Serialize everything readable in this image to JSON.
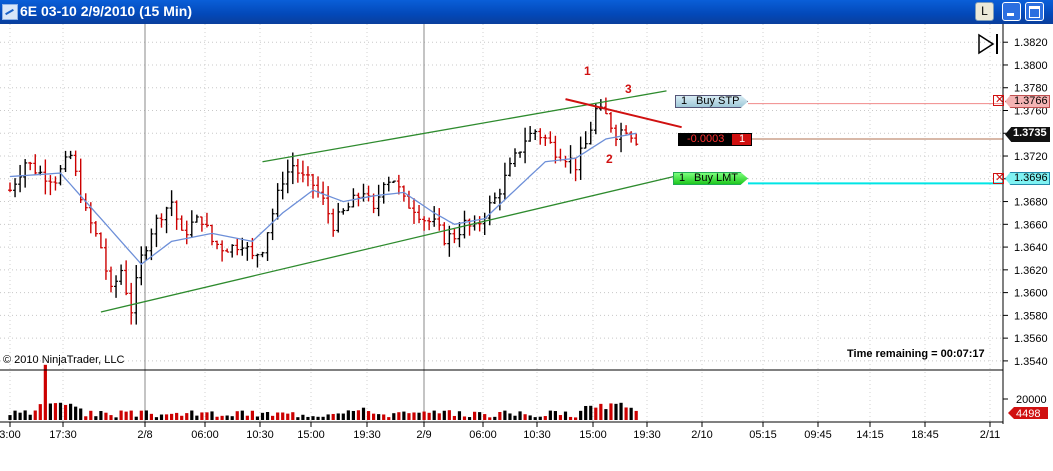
{
  "window": {
    "title": "6E 03-10  2/9/2010 (15 Min)",
    "button_l": "L"
  },
  "copyright": "© 2010 NinjaTrader, LLC",
  "time_remaining": "Time remaining = 00:07:17",
  "annotations": {
    "label1": "1",
    "label2": "2",
    "label3": "3"
  },
  "orders": {
    "buy_stop": {
      "qty": "1",
      "label": "Buy STP",
      "price": "1.3766"
    },
    "position": {
      "pnl": "-0.0003",
      "qty": "1",
      "price": "1.3735"
    },
    "buy_limit": {
      "qty": "1",
      "label": "Buy LMT",
      "price": "1.3696"
    }
  },
  "volume_axis": {
    "label": "20000",
    "last": "4498"
  },
  "colors": {
    "channel": "#2e8b2e",
    "ema": "#6d8fd8",
    "up_bar": "#000000",
    "down_bar": "#cc0000",
    "buy_stop": "#f08a8a",
    "buy_limit": "#00e5e5",
    "accent_title": "#0a5fd8"
  },
  "chart_data": {
    "type": "ohlc",
    "symbol": "6E 03-10",
    "interval": "15 Min",
    "price_axis": {
      "ticks": [
        "1.3820",
        "1.3800",
        "1.3780",
        "1.3760",
        "1.3740",
        "1.3720",
        "1.3700",
        "1.3680",
        "1.3660",
        "1.3640",
        "1.3620",
        "1.3600",
        "1.3580",
        "1.3560",
        "1.3540"
      ],
      "range": [
        1.3532,
        1.3836
      ]
    },
    "time_axis": {
      "labels": [
        "3:00",
        "17:30",
        "2/8",
        "06:00",
        "10:30",
        "15:00",
        "19:30",
        "2/9",
        "06:00",
        "10:30",
        "15:00",
        "19:30",
        "2/10",
        "05:15",
        "09:45",
        "14:15",
        "18:45",
        "2/11"
      ]
    },
    "close_path": [
      [
        0,
        1.369
      ],
      [
        3,
        1.3715
      ],
      [
        6,
        1.3705
      ],
      [
        9,
        1.37
      ],
      [
        12,
        1.372
      ],
      [
        15,
        1.367
      ],
      [
        18,
        1.364
      ],
      [
        20,
        1.36
      ],
      [
        22,
        1.362
      ],
      [
        24,
        1.3585
      ],
      [
        26,
        1.363
      ],
      [
        28,
        1.3655
      ],
      [
        30,
        1.367
      ],
      [
        32,
        1.368
      ],
      [
        34,
        1.365
      ],
      [
        36,
        1.366
      ],
      [
        38,
        1.3665
      ],
      [
        40,
        1.3645
      ],
      [
        42,
        1.364
      ],
      [
        44,
        1.364
      ],
      [
        46,
        1.3645
      ],
      [
        48,
        1.363
      ],
      [
        50,
        1.364
      ],
      [
        52,
        1.367
      ],
      [
        54,
        1.37
      ],
      [
        56,
        1.3712
      ],
      [
        58,
        1.37
      ],
      [
        60,
        1.3695
      ],
      [
        62,
        1.368
      ],
      [
        64,
        1.366
      ],
      [
        66,
        1.367
      ],
      [
        68,
        1.368
      ],
      [
        70,
        1.369
      ],
      [
        72,
        1.367
      ],
      [
        74,
        1.37
      ],
      [
        76,
        1.37
      ],
      [
        78,
        1.368
      ],
      [
        80,
        1.3675
      ],
      [
        82,
        1.3665
      ],
      [
        84,
        1.366
      ],
      [
        86,
        1.3648
      ],
      [
        88,
        1.365
      ],
      [
        90,
        1.366
      ],
      [
        92,
        1.3655
      ],
      [
        94,
        1.367
      ],
      [
        96,
        1.3682
      ],
      [
        98,
        1.37
      ],
      [
        100,
        1.3718
      ],
      [
        102,
        1.3735
      ],
      [
        104,
        1.3742
      ],
      [
        106,
        1.3735
      ],
      [
        108,
        1.3725
      ],
      [
        110,
        1.372
      ],
      [
        112,
        1.3712
      ],
      [
        114,
        1.373
      ],
      [
        116,
        1.376
      ],
      [
        118,
        1.3755
      ],
      [
        120,
        1.374
      ],
      [
        122,
        1.3745
      ],
      [
        124,
        1.3735
      ]
    ],
    "ema_path": [
      [
        0,
        1.3702
      ],
      [
        10,
        1.3705
      ],
      [
        20,
        1.3655
      ],
      [
        26,
        1.3625
      ],
      [
        32,
        1.3645
      ],
      [
        40,
        1.3652
      ],
      [
        48,
        1.3645
      ],
      [
        54,
        1.367
      ],
      [
        60,
        1.369
      ],
      [
        66,
        1.368
      ],
      [
        72,
        1.3685
      ],
      [
        78,
        1.3688
      ],
      [
        84,
        1.367
      ],
      [
        88,
        1.366
      ],
      [
        94,
        1.3665
      ],
      [
        100,
        1.369
      ],
      [
        106,
        1.3715
      ],
      [
        112,
        1.3718
      ],
      [
        118,
        1.3735
      ],
      [
        124,
        1.374
      ]
    ],
    "channel_lines": [
      {
        "name": "upper",
        "from": [
          50,
          1.3715
        ],
        "to": [
          122,
          1.3771
        ]
      },
      {
        "name": "lower",
        "from": [
          18,
          1.3583
        ],
        "to": [
          120,
          1.369
        ]
      },
      {
        "name": "resistance",
        "from": [
          110,
          1.377
        ],
        "to": [
          124,
          1.3755
        ]
      }
    ],
    "levels": {
      "buy_stop": 1.3766,
      "last": 1.3735,
      "buy_limit": 1.3696
    },
    "volume": {
      "max": 28000
    }
  }
}
